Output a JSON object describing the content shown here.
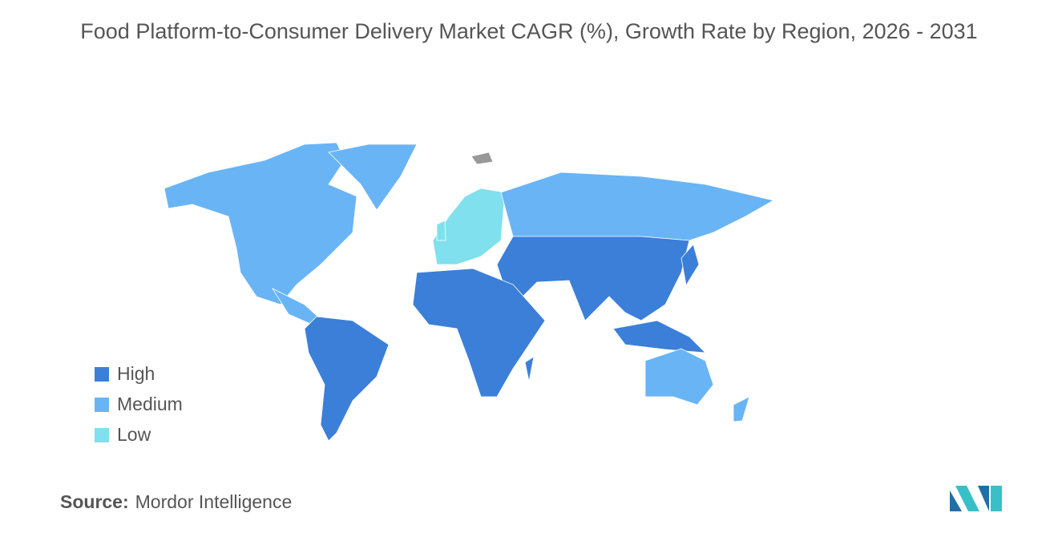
{
  "title": "Food Platform-to-Consumer Delivery Market CAGR (%), Growth Rate by Region, 2026 - 2031",
  "legend": {
    "items": [
      {
        "label": "High",
        "color": "#3b7fd9"
      },
      {
        "label": "Medium",
        "color": "#69b4f5"
      },
      {
        "label": "Low",
        "color": "#80e0ee"
      }
    ]
  },
  "source": {
    "label": "Source:",
    "text": "Mordor Intelligence"
  }
}
